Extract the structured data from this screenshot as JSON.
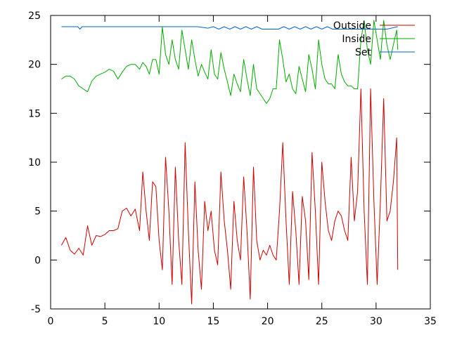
{
  "chart_data": {
    "type": "line",
    "title": "",
    "xlabel": "",
    "ylabel": "",
    "xlim": [
      0,
      35
    ],
    "ylim": [
      -5,
      25
    ],
    "grid": false,
    "legend_position": "top-right",
    "x_ticks": [
      0,
      5,
      10,
      15,
      20,
      25,
      30,
      35
    ],
    "y_ticks": [
      -5,
      0,
      5,
      10,
      15,
      20,
      25
    ],
    "colors": {
      "outside": "#cc0000",
      "inside": "#00aa00",
      "set": "#0066cc"
    },
    "series": [
      {
        "name": "Outside",
        "color": "#cc0000",
        "x": [
          1,
          1.4,
          1.8,
          2.2,
          2.6,
          3.0,
          3.4,
          3.8,
          4.2,
          4.6,
          5.0,
          5.4,
          5.8,
          6.2,
          6.6,
          7.0,
          7.4,
          7.8,
          8.2,
          8.5,
          8.8,
          9.1,
          9.4,
          9.7,
          10.0,
          10.3,
          10.6,
          10.9,
          11.2,
          11.5,
          11.8,
          12.1,
          12.4,
          12.7,
          13.0,
          13.3,
          13.6,
          13.9,
          14.2,
          14.5,
          14.8,
          15.1,
          15.4,
          15.7,
          16.0,
          16.3,
          16.6,
          16.9,
          17.2,
          17.5,
          17.8,
          18.1,
          18.4,
          18.7,
          19.0,
          19.3,
          19.6,
          19.9,
          20.2,
          20.5,
          20.8,
          21.1,
          21.4,
          21.7,
          22.0,
          22.3,
          22.6,
          22.9,
          23.2,
          23.5,
          23.8,
          24.1,
          24.4,
          24.7,
          25.0,
          25.3,
          25.6,
          25.9,
          26.2,
          26.5,
          26.8,
          27.1,
          27.4,
          27.7,
          28.0,
          28.3,
          28.6,
          28.9,
          29.2,
          29.5,
          29.8,
          30.1,
          30.4,
          30.7,
          31.0,
          31.3,
          31.6,
          31.9,
          32.0
        ],
        "y": [
          1.5,
          2.3,
          1.0,
          0.6,
          1.2,
          0.5,
          3.5,
          1.5,
          2.5,
          2.4,
          2.6,
          3.0,
          3.0,
          3.2,
          5.0,
          5.3,
          4.5,
          5.2,
          3.0,
          9.0,
          5.0,
          2.0,
          8.0,
          7.5,
          2.0,
          -1.0,
          10.5,
          5.0,
          -2.5,
          9.5,
          2.0,
          -2.5,
          12.0,
          3.0,
          -4.5,
          8.0,
          1.0,
          -3.0,
          6.0,
          3.0,
          5.0,
          1.0,
          -0.5,
          9.0,
          4.0,
          1.0,
          -3.0,
          6.0,
          2.0,
          0.0,
          8.5,
          3.0,
          -4.0,
          9.5,
          2.0,
          0.0,
          1.0,
          0.5,
          1.5,
          0.5,
          0.0,
          5.0,
          12.0,
          4.0,
          -2.5,
          7.0,
          3.0,
          -2.5,
          6.5,
          4.0,
          -2.0,
          11.0,
          5.0,
          -2.5,
          10.0,
          6.0,
          3.0,
          2.0,
          4.0,
          5.0,
          4.5,
          3.0,
          2.0,
          10.5,
          4.0,
          7.0,
          17.5,
          5.0,
          -2.5,
          17.5,
          6.0,
          -2.5,
          6.0,
          16.5,
          4.0,
          5.0,
          8.0,
          12.5,
          -1.0
        ],
        "series_key": "outside"
      },
      {
        "name": "Inside",
        "color": "#00aa00",
        "x": [
          1,
          1.4,
          1.8,
          2.2,
          2.6,
          3.0,
          3.4,
          3.8,
          4.2,
          4.6,
          5.0,
          5.4,
          5.8,
          6.2,
          6.6,
          7.0,
          7.4,
          7.8,
          8.2,
          8.5,
          8.8,
          9.1,
          9.4,
          9.7,
          10.0,
          10.3,
          10.6,
          10.9,
          11.2,
          11.5,
          11.8,
          12.1,
          12.4,
          12.7,
          13.0,
          13.3,
          13.6,
          13.9,
          14.2,
          14.5,
          14.8,
          15.1,
          15.4,
          15.7,
          16.0,
          16.3,
          16.6,
          16.9,
          17.2,
          17.5,
          17.8,
          18.1,
          18.4,
          18.7,
          19.0,
          19.3,
          19.6,
          19.9,
          20.2,
          20.5,
          20.8,
          21.1,
          21.4,
          21.7,
          22.0,
          22.3,
          22.6,
          22.9,
          23.2,
          23.5,
          23.8,
          24.1,
          24.4,
          24.7,
          25.0,
          25.3,
          25.6,
          25.9,
          26.2,
          26.5,
          26.8,
          27.1,
          27.4,
          27.7,
          28.0,
          28.3,
          28.6,
          28.9,
          29.2,
          29.5,
          29.8,
          30.1,
          30.4,
          30.7,
          31.0,
          31.3,
          31.6,
          31.9,
          32.0
        ],
        "y": [
          18.5,
          18.8,
          18.8,
          18.5,
          17.8,
          17.5,
          17.2,
          18.3,
          18.8,
          19.0,
          19.2,
          19.5,
          19.3,
          18.5,
          19.2,
          19.8,
          20.0,
          20.0,
          19.5,
          20.2,
          19.8,
          19.0,
          20.5,
          20.5,
          19.0,
          23.8,
          21.0,
          20.0,
          22.5,
          20.5,
          19.5,
          23.5,
          21.5,
          19.5,
          22.5,
          20.5,
          18.8,
          20.0,
          19.2,
          18.5,
          21.5,
          19.0,
          18.5,
          21.2,
          19.5,
          18.2,
          16.8,
          19.0,
          18.0,
          17.2,
          20.5,
          18.5,
          16.8,
          20.0,
          17.5,
          17.0,
          16.5,
          16.0,
          16.5,
          17.5,
          17.5,
          22.5,
          20.5,
          18.2,
          19.0,
          17.5,
          17.0,
          19.8,
          18.5,
          17.2,
          21.0,
          19.5,
          17.5,
          22.5,
          20.0,
          18.5,
          18.0,
          18.0,
          17.5,
          21.0,
          19.0,
          18.2,
          17.8,
          17.8,
          17.5,
          17.5,
          22.5,
          24.5,
          21.5,
          20.0,
          24.5,
          22.5,
          20.5,
          24.5,
          22.0,
          20.5,
          22.0,
          23.5,
          21.5
        ],
        "series_key": "inside"
      },
      {
        "name": "Set",
        "color": "#0066cc",
        "x": [
          1,
          2.5,
          2.7,
          2.9,
          5.0,
          10.0,
          13.5,
          14.5,
          15.0,
          15.5,
          16.0,
          16.5,
          17.0,
          17.5,
          18.0,
          18.5,
          19.0,
          19.5,
          20.0,
          21.0,
          21.5,
          22.0,
          22.5,
          23.0,
          23.5,
          24.0,
          24.5,
          25.0,
          25.5,
          26.0,
          27.0,
          28.0,
          29.0,
          30.0,
          31.0,
          32.0
        ],
        "y": [
          23.85,
          23.85,
          23.6,
          23.85,
          23.85,
          23.85,
          23.85,
          23.7,
          23.85,
          23.6,
          23.85,
          23.6,
          23.85,
          23.6,
          23.85,
          23.6,
          23.85,
          23.6,
          23.6,
          23.6,
          23.85,
          23.6,
          23.85,
          23.6,
          23.85,
          23.6,
          23.85,
          23.6,
          23.85,
          23.6,
          23.6,
          23.6,
          23.6,
          23.6,
          23.6,
          23.85
        ],
        "series_key": "set"
      }
    ]
  }
}
